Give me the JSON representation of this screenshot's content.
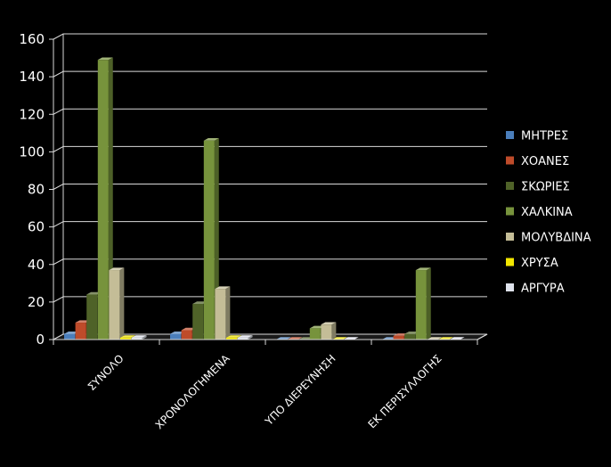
{
  "chart_data": {
    "type": "bar",
    "categories": [
      "ΣΥΝΟΛΟ",
      "ΧΡΟΝΟΛΟΓΗΜΕΝΑ",
      "ΥΠΟ ΔΙΕΡΕΥΝΗΣΗ",
      "ΕΚ ΠΕΡΙΣΥΛΛΟΓΗΣ"
    ],
    "series": [
      {
        "name": "ΜΗΤΡΕΣ",
        "values": [
          3,
          3,
          0,
          0
        ],
        "color": "#4a7ebb"
      },
      {
        "name": "ΧΟΑΝΕΣ",
        "values": [
          9,
          5,
          0,
          2
        ],
        "color": "#be4b2a"
      },
      {
        "name": "ΣΚΩΡΙΕΣ",
        "values": [
          24,
          19,
          0,
          3
        ],
        "color": "#4f6228"
      },
      {
        "name": "ΧΑΛΚΙΝΑ",
        "values": [
          149,
          106,
          6,
          37
        ],
        "color": "#77933c"
      },
      {
        "name": "ΜΟΛΥΒΔΙΝΑ",
        "values": [
          37,
          27,
          8,
          0
        ],
        "color": "#c4bd97"
      },
      {
        "name": "ΧΡΥΣΑ",
        "values": [
          1,
          1,
          0,
          0
        ],
        "color": "#f2e600"
      },
      {
        "name": "ΑΡΓΥΡΑ",
        "values": [
          1,
          1,
          0,
          0
        ],
        "color": "#dfe3ec"
      }
    ],
    "ylim": [
      0,
      160
    ],
    "yticks": [
      "0",
      "20",
      "40",
      "60",
      "80",
      "100",
      "120",
      "140",
      "160"
    ],
    "grid": true,
    "legend_position": "right"
  }
}
